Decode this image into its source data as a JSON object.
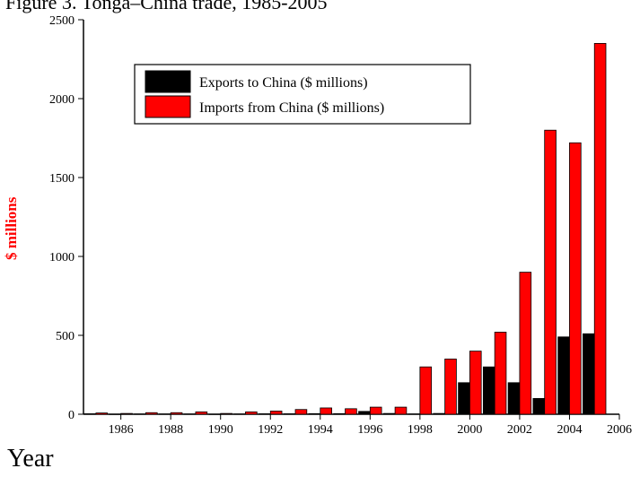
{
  "caption_fragment": "Figure 3. Tonga–China trade, 1985-2005",
  "chart_data": {
    "type": "bar",
    "title": "",
    "xlabel": "Year",
    "ylabel": "$ millions",
    "xlim": [
      1984.5,
      2006
    ],
    "ylim": [
      0,
      2500
    ],
    "x_ticks": [
      1986,
      1988,
      1990,
      1992,
      1994,
      1996,
      1998,
      2000,
      2002,
      2004,
      2006
    ],
    "y_ticks": [
      0,
      500,
      1000,
      1500,
      2000,
      2500
    ],
    "categories": [
      1985,
      1986,
      1987,
      1988,
      1989,
      1990,
      1991,
      1992,
      1993,
      1994,
      1995,
      1996,
      1997,
      1998,
      1999,
      2000,
      2001,
      2002,
      2003,
      2004,
      2005
    ],
    "series": [
      {
        "name": "Exports to China ($ millions)",
        "color": "#000000",
        "values": [
          3,
          1,
          2,
          2,
          2,
          1,
          2,
          3,
          3,
          4,
          4,
          18,
          5,
          2,
          5,
          200,
          300,
          200,
          100,
          490,
          510
        ]
      },
      {
        "name": "Imports from China ($ millions)",
        "color": "#ff0000",
        "values": [
          8,
          5,
          10,
          10,
          15,
          5,
          15,
          20,
          30,
          40,
          35,
          45,
          45,
          300,
          350,
          400,
          520,
          900,
          1800,
          1720,
          2350
        ]
      }
    ],
    "legend_position": "top-left",
    "grid": false,
    "ylabel_color": "#ff0000"
  }
}
